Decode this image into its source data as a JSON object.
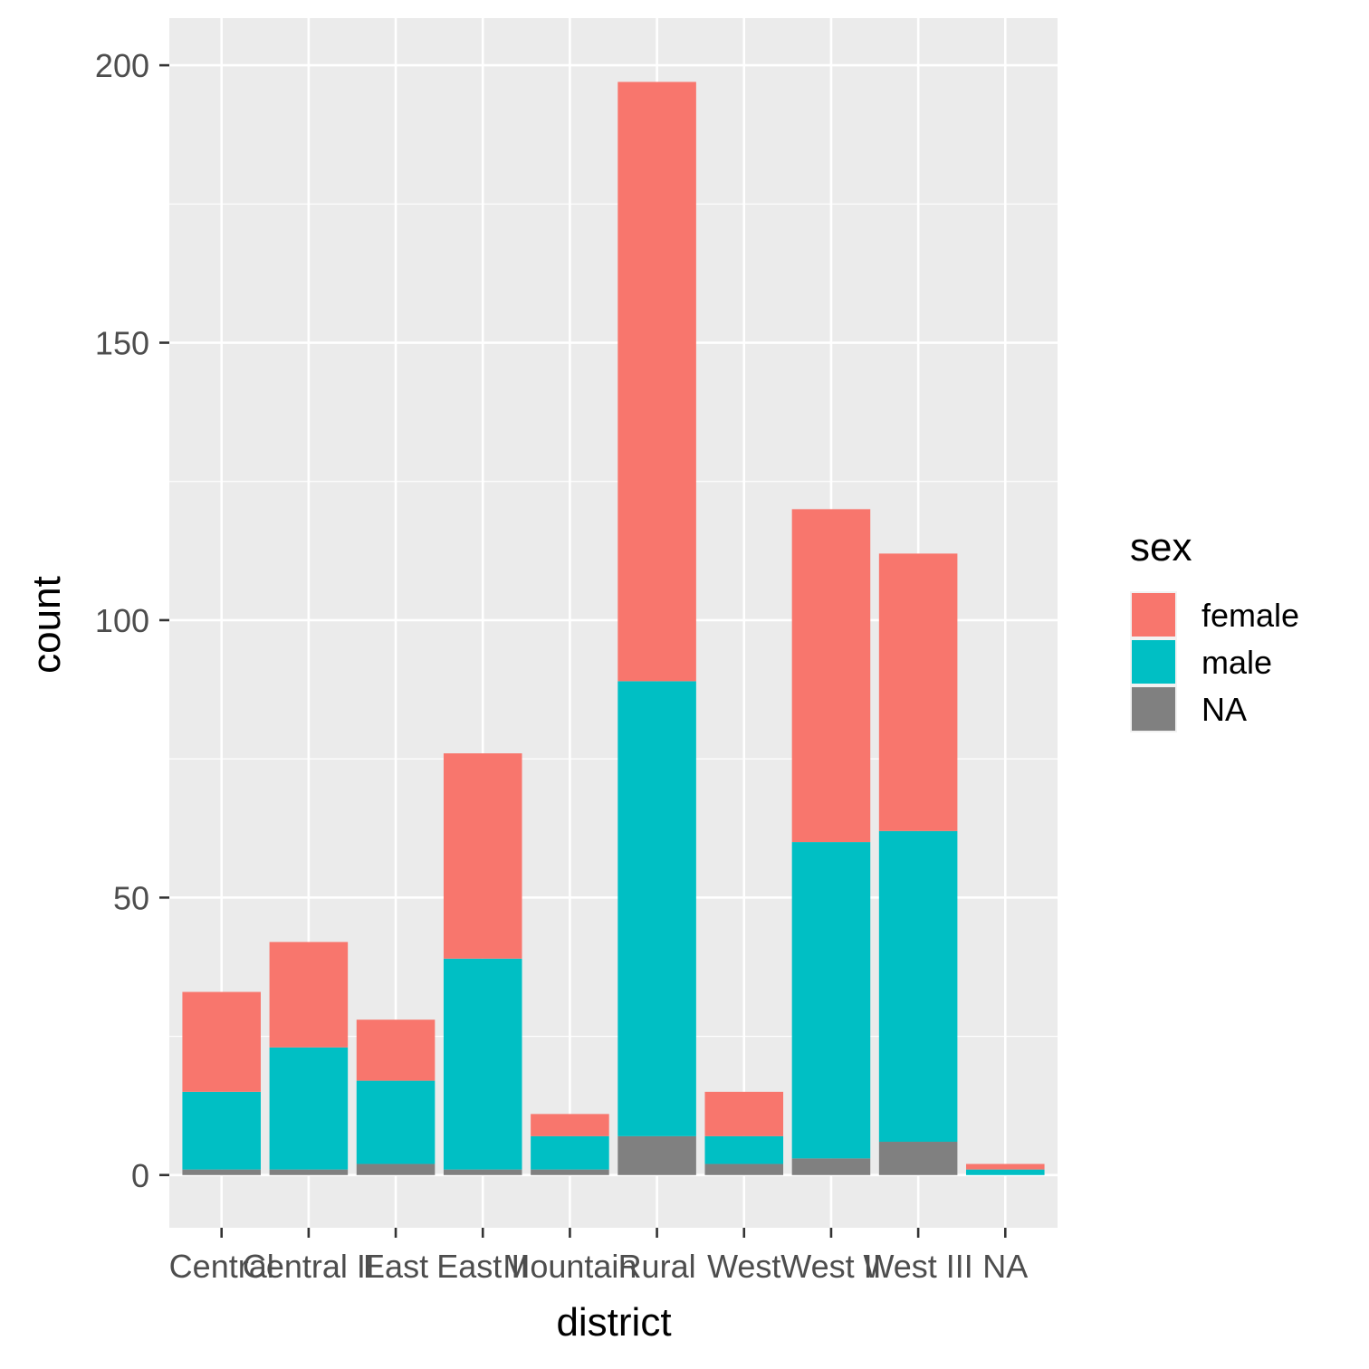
{
  "chart_data": {
    "type": "bar",
    "stacked": true,
    "categories": [
      "Central",
      "Central II",
      "East",
      "East II",
      "Mountain",
      "Rural",
      "West",
      "West II",
      "West III",
      "NA"
    ],
    "visible_tick_labels": [
      "Central",
      "Central II",
      "East",
      "East II",
      "Mountain",
      "Rural",
      "West",
      "West II",
      "West III",
      "NA"
    ],
    "series": [
      {
        "name": "NA",
        "color": "#808080",
        "values": [
          1,
          1,
          2,
          1,
          1,
          7,
          2,
          3,
          6,
          0
        ]
      },
      {
        "name": "male",
        "color": "#00BFC4",
        "values": [
          14,
          22,
          15,
          38,
          6,
          82,
          5,
          57,
          56,
          1
        ]
      },
      {
        "name": "female",
        "color": "#F8766D",
        "values": [
          18,
          19,
          11,
          37,
          4,
          108,
          8,
          60,
          50,
          1
        ]
      }
    ],
    "xlabel": "district",
    "ylabel": "count",
    "ylim": [
      -9.5,
      208.5
    ],
    "yticks": [
      0,
      50,
      100,
      150,
      200
    ],
    "grid": true,
    "background": "#EBEBEB",
    "legend": {
      "title": "sex",
      "position": "right",
      "entries": [
        {
          "label": "female",
          "color": "#F8766D"
        },
        {
          "label": "male",
          "color": "#00BFC4"
        },
        {
          "label": "NA",
          "color": "#808080"
        }
      ]
    }
  }
}
